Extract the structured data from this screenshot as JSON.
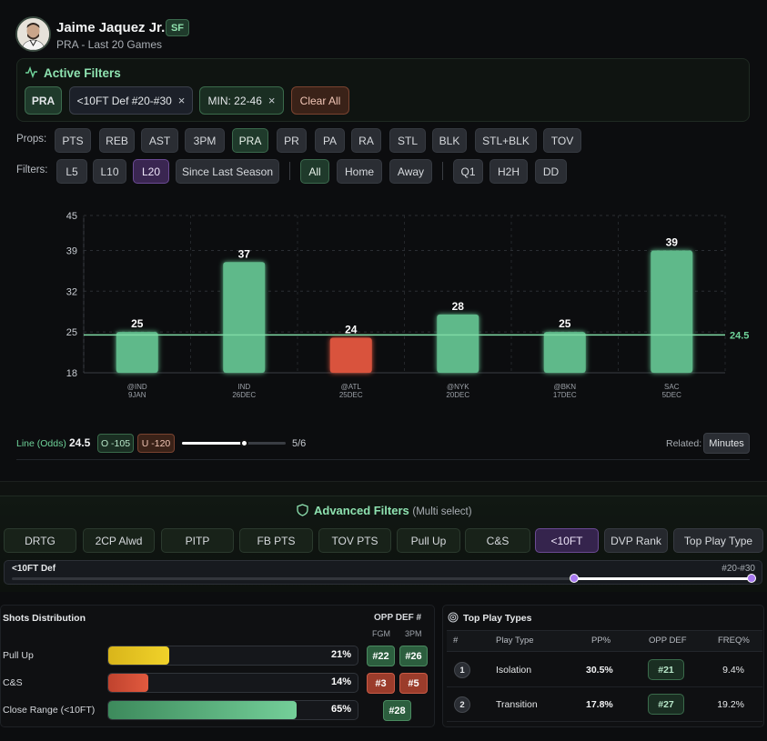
{
  "player": {
    "name": "Jaime Jaquez Jr.",
    "position": "SF",
    "subtitle": "PRA - Last 20 Games"
  },
  "active_filters": {
    "title": "Active Filters",
    "chips": [
      {
        "label": "PRA",
        "removable": false
      },
      {
        "label": "<10FT Def #20-#30",
        "removable": true
      },
      {
        "label": "MIN: 22-46",
        "removable": true
      }
    ],
    "remove_symbol": "×",
    "clear_all": "Clear All"
  },
  "props": {
    "label": "Props:",
    "items": [
      "PTS",
      "REB",
      "AST",
      "3PM",
      "PRA",
      "PR",
      "PA",
      "RA",
      "STL",
      "BLK",
      "STL+BLK",
      "TOV"
    ],
    "selected": "PRA"
  },
  "filters": {
    "label": "Filters:",
    "range_items": [
      "L5",
      "L10",
      "L20",
      "Since Last Season"
    ],
    "range_selected": "L20",
    "venue_items": [
      "All",
      "Home",
      "Away"
    ],
    "venue_selected": "All",
    "extra_items": [
      "Q1",
      "H2H",
      "DD"
    ]
  },
  "chart_data": {
    "type": "bar",
    "title": "",
    "categories": [
      "@IND 9JAN",
      "IND 26DEC",
      "@ATL 25DEC",
      "@NYK 20DEC",
      "@BKN 17DEC",
      "SAC 5DEC"
    ],
    "opponents": [
      "@IND",
      "IND",
      "@ATL",
      "@NYK",
      "@BKN",
      "SAC"
    ],
    "dates": [
      "9JAN",
      "26DEC",
      "25DEC",
      "20DEC",
      "17DEC",
      "5DEC"
    ],
    "values": [
      25,
      37,
      24,
      28,
      25,
      39
    ],
    "bar_colors": [
      "#5fb98a",
      "#5fb98a",
      "#d9533d",
      "#5fb98a",
      "#5fb98a",
      "#5fb98a"
    ],
    "ylim": [
      18,
      45
    ],
    "y_ticks": [
      "45",
      "39",
      "32",
      "25",
      "18"
    ],
    "line": 24.5,
    "line_label": "24.5",
    "xlabel": "",
    "ylabel": ""
  },
  "line_odds": {
    "label": "Line (Odds)",
    "value": "24.5",
    "over": "O -105",
    "under": "U -120",
    "hit_fraction": 0.6,
    "hit_text": "5/6"
  },
  "related": {
    "label": "Related:",
    "button": "Minutes"
  },
  "advanced": {
    "title": "Advanced Filters",
    "subtitle": "(Multi select)",
    "items": [
      "DRTG",
      "2CP Alwd",
      "PITP",
      "FB PTS",
      "TOV PTS",
      "Pull Up",
      "C&S",
      "<10FT",
      "DVP Rank",
      "Top Play Type"
    ],
    "selected": "<10FT",
    "range_label": "<10FT Def",
    "range_value": "#20-#30",
    "range_low": 0.76,
    "range_high": 1.0
  },
  "shots": {
    "title": "Shots Distribution",
    "opp_def_header": "OPP DEF #",
    "col_fgm": "FGM",
    "col_3pm": "3PM",
    "rows": [
      {
        "label": "Pull Up",
        "pct": "21%",
        "value": 21,
        "fgm": "#22",
        "fgm_color": "g",
        "tpm": "#26",
        "tpm_color": "g"
      },
      {
        "label": "C&S",
        "pct": "14%",
        "value": 14,
        "fgm": "#3",
        "fgm_color": "r",
        "tpm": "#5",
        "tpm_color": "r"
      },
      {
        "label": "Close Range (<10FT)",
        "pct": "65%",
        "value": 65,
        "fgm": "#28",
        "fgm_color": "g"
      }
    ]
  },
  "play_types": {
    "title": "Top Play Types",
    "headers": [
      "#",
      "Play Type",
      "PP%",
      "OPP DEF",
      "FREQ%"
    ],
    "rows": [
      {
        "rank": "1",
        "type": "Isolation",
        "pp": "30.5%",
        "opp": "#21",
        "freq": "9.4%"
      },
      {
        "rank": "2",
        "type": "Transition",
        "pp": "17.8%",
        "opp": "#27",
        "freq": "19.2%"
      }
    ]
  },
  "colors": {
    "accent_green": "#5fb98a",
    "accent_red": "#d9533d",
    "accent_purple": "#8b5cf6"
  }
}
